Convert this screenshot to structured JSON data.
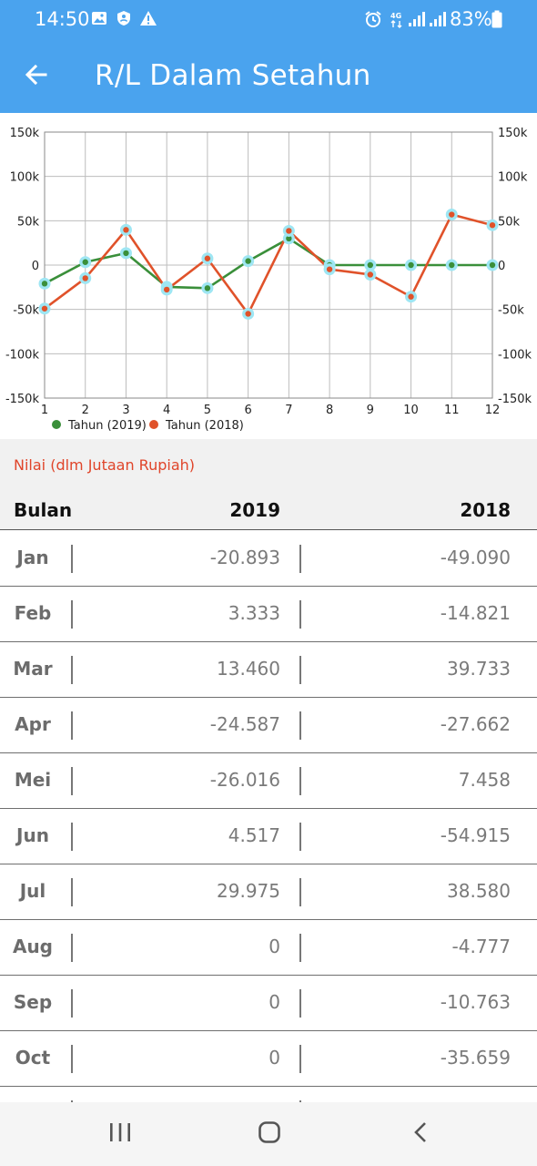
{
  "status_bar": {
    "time": "14:50",
    "battery": "83%",
    "icons": [
      "image-icon",
      "shield-icon",
      "warning-icon",
      "alarm-icon",
      "4g-icon",
      "signal-icon",
      "signal-icon",
      "battery-icon"
    ]
  },
  "app_bar": {
    "title": "R/L Dalam Setahun",
    "back_icon": "arrow-left-icon"
  },
  "chart_data": {
    "type": "line",
    "x": [
      1,
      2,
      3,
      4,
      5,
      6,
      7,
      8,
      9,
      10,
      11,
      12
    ],
    "xlim": [
      1,
      12
    ],
    "ylim": [
      -150000,
      150000
    ],
    "y_ticks": [
      "-150k",
      "-100k",
      "-50k",
      "0",
      "50k",
      "100k",
      "150k"
    ],
    "x_ticks": [
      "1",
      "2",
      "3",
      "4",
      "5",
      "6",
      "7",
      "8",
      "9",
      "10",
      "11",
      "12"
    ],
    "grid": true,
    "legend_position": "bottom-left",
    "series": [
      {
        "name": "Tahun (2019)",
        "color": "#3a8f3a",
        "values": [
          -20893,
          3333,
          13460,
          -24587,
          -26016,
          4517,
          29975,
          0,
          0,
          0,
          0,
          0
        ]
      },
      {
        "name": "Tahun (2018)",
        "color": "#e0522a",
        "values": [
          -49090,
          -14821,
          39733,
          -27662,
          7458,
          -54915,
          38580,
          -4777,
          -10763,
          -35659,
          57000,
          45000
        ]
      }
    ]
  },
  "unit_label": "Nilai (dlm Jutaan Rupiah)",
  "table": {
    "headers": {
      "month": "Bulan",
      "col1": "2019",
      "col2": "2018"
    },
    "rows": [
      {
        "month": "Jan",
        "v2019": "-20.893",
        "v2018": "-49.090"
      },
      {
        "month": "Feb",
        "v2019": "3.333",
        "v2018": "-14.821"
      },
      {
        "month": "Mar",
        "v2019": "13.460",
        "v2018": "39.733"
      },
      {
        "month": "Apr",
        "v2019": "-24.587",
        "v2018": "-27.662"
      },
      {
        "month": "Mei",
        "v2019": "-26.016",
        "v2018": "7.458"
      },
      {
        "month": "Jun",
        "v2019": "4.517",
        "v2018": "-54.915"
      },
      {
        "month": "Jul",
        "v2019": "29.975",
        "v2018": "38.580"
      },
      {
        "month": "Aug",
        "v2019": "0",
        "v2018": "-4.777"
      },
      {
        "month": "Sep",
        "v2019": "0",
        "v2018": "-10.763"
      },
      {
        "month": "Oct",
        "v2019": "0",
        "v2018": "-35.659"
      }
    ]
  },
  "nav_bar": {
    "icons": [
      "recent-apps-icon",
      "home-icon",
      "back-icon"
    ]
  },
  "colors": {
    "header": "#4aa3ee",
    "marker_halo": "#9ee6f3",
    "unit_label": "#e0452a"
  }
}
